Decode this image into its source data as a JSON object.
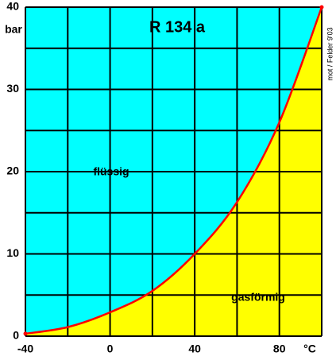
{
  "chart_data": {
    "type": "line",
    "title": "R 134 a",
    "x_unit": "°C",
    "y_unit": "bar",
    "annotations": [
      "flüssig",
      "gasförmig"
    ],
    "credit": "mot / Felder 9'03",
    "x": [
      -40,
      -20,
      0,
      20,
      40,
      60,
      80,
      100
    ],
    "series": [
      {
        "color": "#ff0000",
        "values": [
          0.3,
          1.1,
          2.9,
          5.5,
          10,
          16.3,
          26,
          40
        ]
      }
    ],
    "fill_above": "#00ffff",
    "fill_below": "#ffff00",
    "xlim": [
      -40,
      100
    ],
    "ylim": [
      0,
      40
    ],
    "xticks": [
      -40,
      0,
      40,
      80
    ],
    "xgrid": [
      -40,
      -20,
      0,
      20,
      40,
      60,
      80,
      100
    ],
    "yticks": [
      0,
      10,
      20,
      30,
      40
    ],
    "ygrid": [
      0,
      5,
      10,
      15,
      20,
      25,
      30,
      35,
      40
    ]
  }
}
